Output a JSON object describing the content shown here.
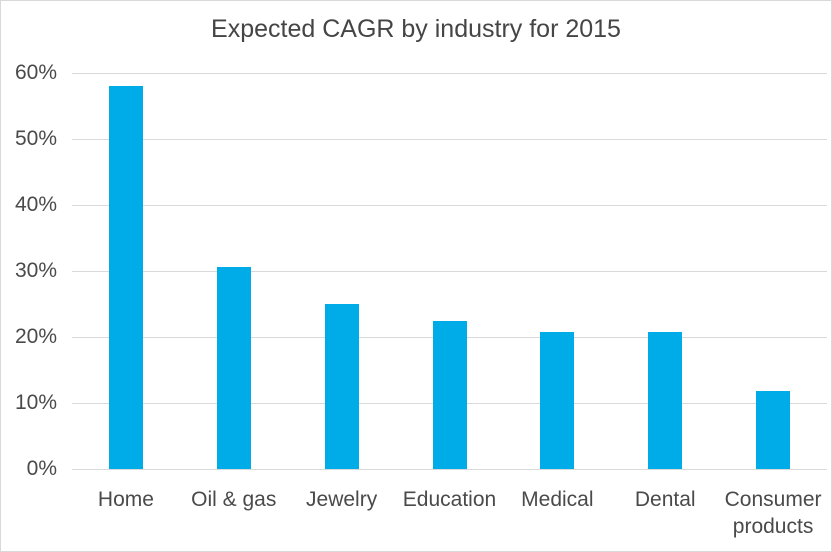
{
  "chart_data": {
    "type": "bar",
    "title": "Expected CAGR by industry for 2015",
    "categories": [
      "Home",
      "Oil & gas",
      "Jewelry",
      "Education",
      "Medical",
      "Dental",
      "Consumer products"
    ],
    "values": [
      58,
      30.6,
      25,
      22.5,
      20.7,
      20.7,
      11.8
    ],
    "unit": "%",
    "xlabel": "",
    "ylabel": "",
    "ylim": [
      0,
      60
    ],
    "ytick_step": 10,
    "ytick_labels": [
      "0%",
      "10%",
      "20%",
      "30%",
      "40%",
      "50%",
      "60%"
    ],
    "grid": true,
    "legend": false,
    "colors": {
      "bar": "#00ACE8",
      "gridline": "#d9d9d9",
      "axis_text": "#4a4a4a",
      "title_text": "#454545"
    }
  }
}
